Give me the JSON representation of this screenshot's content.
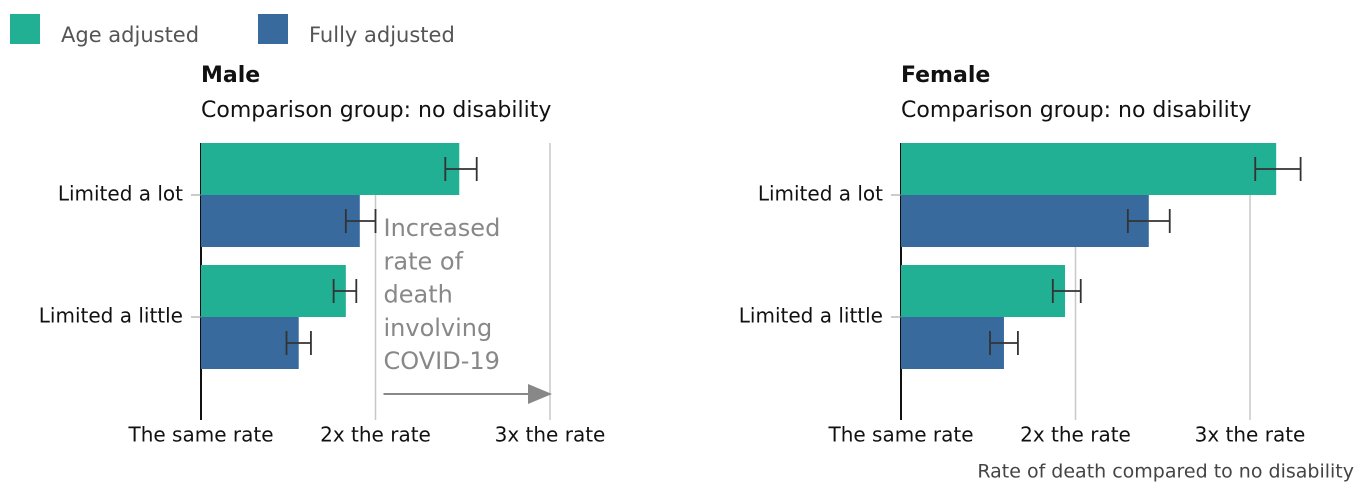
{
  "chart_data": [
    {
      "type": "bar",
      "orientation": "horizontal",
      "title": "Male",
      "subtitle": "Comparison group: no disability",
      "categories": [
        "Limited a lot",
        "Limited a little"
      ],
      "series": [
        {
          "name": "Age adjusted",
          "color": "#22b095",
          "values": [
            2.48,
            1.83
          ],
          "ci_low": [
            2.4,
            1.76
          ],
          "ci_high": [
            2.58,
            1.89
          ]
        },
        {
          "name": "Fully adjusted",
          "color": "#386a9e",
          "values": [
            1.91,
            1.56
          ],
          "ci_low": [
            1.83,
            1.49
          ],
          "ci_high": [
            2.0,
            1.63
          ]
        }
      ],
      "xlim": [
        1,
        3.3
      ],
      "xticks": [
        {
          "value": 1,
          "label": "The same rate"
        },
        {
          "value": 2,
          "label": "2x the rate"
        },
        {
          "value": 3,
          "label": "3x the rate"
        }
      ],
      "grid": true,
      "annotation": [
        "Increased",
        "rate of",
        "death",
        "involving",
        "COVID-19"
      ]
    },
    {
      "type": "bar",
      "orientation": "horizontal",
      "title": "Female",
      "subtitle": "Comparison group: no disability",
      "categories": [
        "Limited a lot",
        "Limited a little"
      ],
      "series": [
        {
          "name": "Age adjusted",
          "color": "#22b095",
          "values": [
            3.15,
            1.94
          ],
          "ci_low": [
            3.03,
            1.87
          ],
          "ci_high": [
            3.29,
            2.03
          ]
        },
        {
          "name": "Fully adjusted",
          "color": "#386a9e",
          "values": [
            2.42,
            1.59
          ],
          "ci_low": [
            2.3,
            1.51
          ],
          "ci_high": [
            2.54,
            1.67
          ]
        }
      ],
      "xlim": [
        1,
        3.3
      ],
      "xticks": [
        {
          "value": 1,
          "label": "The same rate"
        },
        {
          "value": 2,
          "label": "2x the rate"
        },
        {
          "value": 3,
          "label": "3x the rate"
        }
      ],
      "grid": true,
      "xlabel": "Rate of death compared to no disability"
    }
  ]
}
